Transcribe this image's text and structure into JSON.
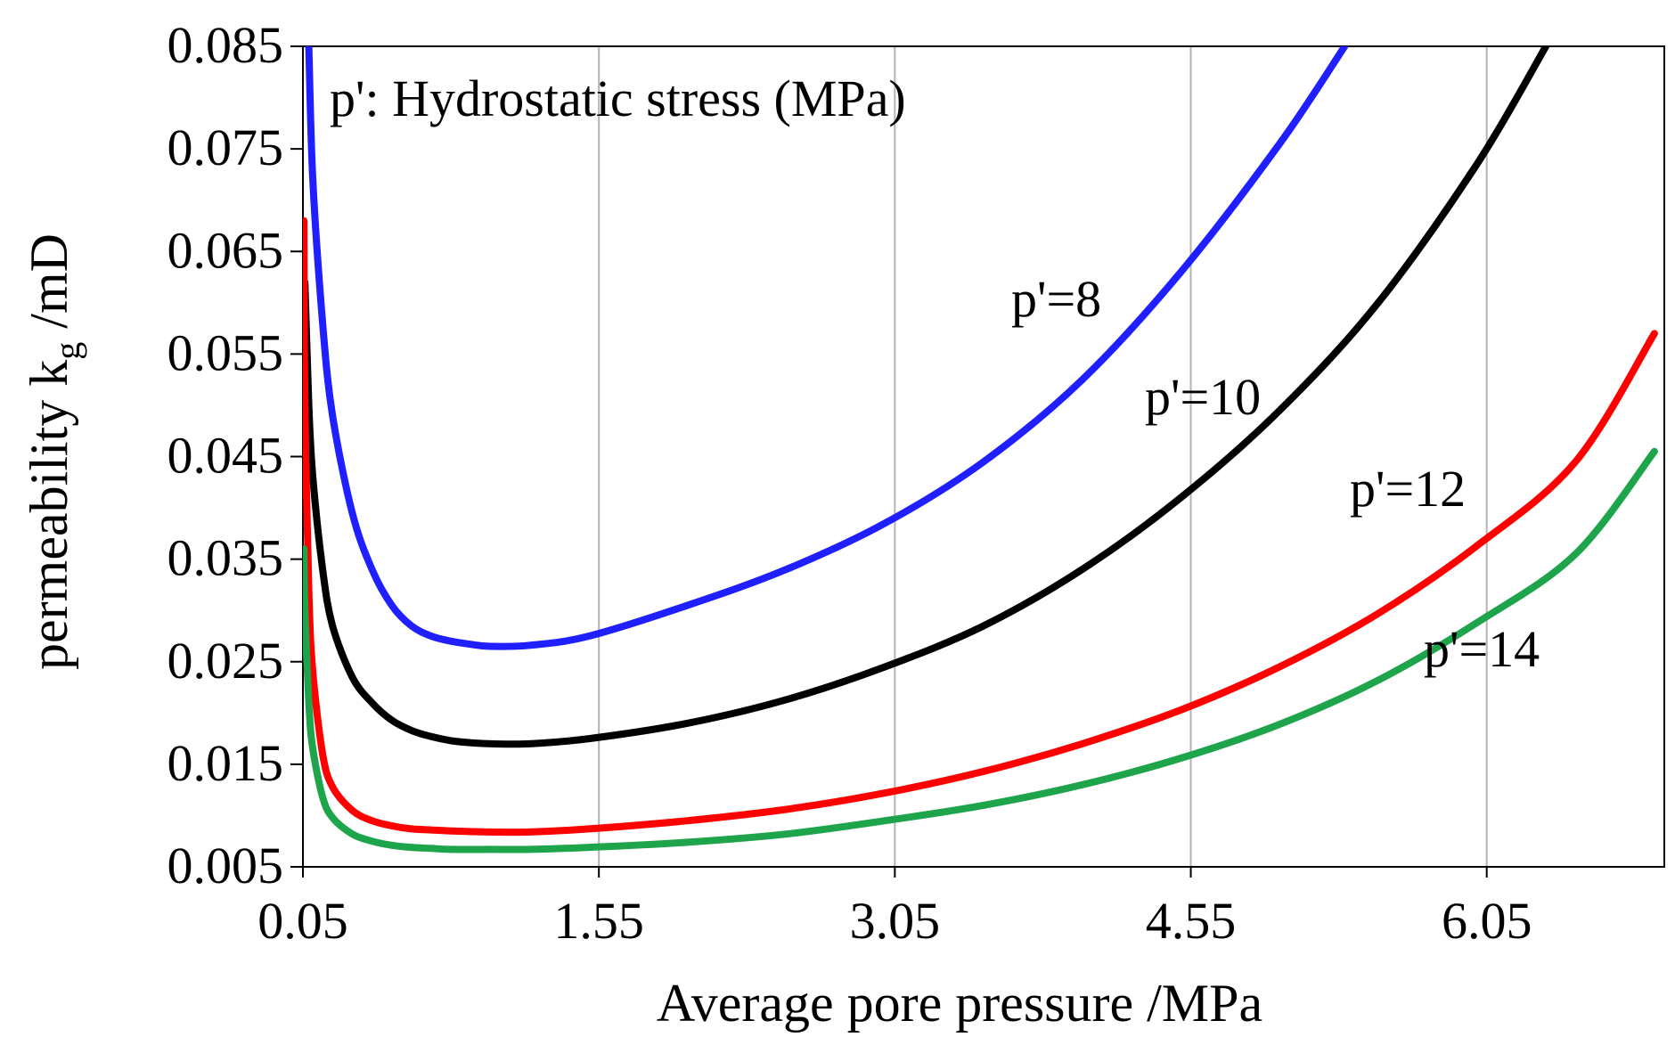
{
  "chart_data": {
    "type": "line",
    "title": "",
    "annotation": "p': Hydrostatic stress (MPa)",
    "xlabel": "Average pore pressure /MPa",
    "ylabel": {
      "main": "permeability k",
      "subscript": "g",
      "unit": " /mD"
    },
    "xlim": [
      0.05,
      6.95
    ],
    "ylim": [
      0.005,
      0.085
    ],
    "xticks": [
      0.05,
      1.55,
      3.05,
      4.55,
      6.05
    ],
    "xtick_labels": [
      "0.05",
      "1.55",
      "3.05",
      "4.55",
      "6.05"
    ],
    "yticks": [
      0.005,
      0.015,
      0.025,
      0.035,
      0.045,
      0.055,
      0.065,
      0.075,
      0.085
    ],
    "ytick_labels": [
      "0.005",
      "0.015",
      "0.025",
      "0.035",
      "0.045",
      "0.055",
      "0.065",
      "0.075",
      "0.085"
    ],
    "grid": "vertical",
    "series": [
      {
        "name": "p'=8",
        "label": "p'=8",
        "color": "#1f1fff",
        "x": [
          0.08,
          0.1,
          0.15,
          0.2,
          0.3,
          0.4,
          0.5,
          0.6,
          0.7,
          0.8,
          0.9,
          1.0,
          1.2,
          1.5,
          2.0,
          2.5,
          3.0,
          3.5,
          4.0,
          4.5,
          5.0,
          5.33
        ],
        "y": [
          0.085,
          0.072,
          0.058,
          0.049,
          0.0395,
          0.034,
          0.0305,
          0.0285,
          0.0275,
          0.027,
          0.0267,
          0.0265,
          0.0266,
          0.0275,
          0.0305,
          0.034,
          0.0385,
          0.0445,
          0.0525,
          0.063,
          0.0755,
          0.085
        ]
      },
      {
        "name": "p'=10",
        "label": "p'=10",
        "color": "#000000",
        "x": [
          0.06,
          0.08,
          0.1,
          0.15,
          0.2,
          0.3,
          0.4,
          0.5,
          0.6,
          0.7,
          0.8,
          0.9,
          1.0,
          1.2,
          1.5,
          2.0,
          2.5,
          3.0,
          3.5,
          4.0,
          4.5,
          5.0,
          5.5,
          6.0,
          6.35
        ],
        "y": [
          0.062,
          0.05,
          0.043,
          0.034,
          0.0285,
          0.0235,
          0.021,
          0.0193,
          0.0183,
          0.0177,
          0.0173,
          0.0171,
          0.017,
          0.017,
          0.0175,
          0.019,
          0.0213,
          0.0245,
          0.0285,
          0.034,
          0.041,
          0.0495,
          0.06,
          0.0735,
          0.085
        ]
      },
      {
        "name": "p'=12",
        "label": "p'=12",
        "color": "#ff0000",
        "x": [
          0.055,
          0.06,
          0.08,
          0.1,
          0.15,
          0.2,
          0.3,
          0.4,
          0.5,
          0.6,
          0.7,
          0.8,
          1.0,
          1.2,
          1.5,
          2.0,
          2.5,
          3.0,
          3.5,
          4.0,
          4.5,
          5.0,
          5.5,
          6.0,
          6.5,
          6.9
        ],
        "y": [
          0.068,
          0.05,
          0.032,
          0.024,
          0.016,
          0.0128,
          0.0105,
          0.0095,
          0.009,
          0.0087,
          0.0086,
          0.0085,
          0.0084,
          0.0084,
          0.0087,
          0.0095,
          0.0106,
          0.0122,
          0.0143,
          0.017,
          0.0203,
          0.0245,
          0.0297,
          0.0363,
          0.0445,
          0.057
        ]
      },
      {
        "name": "p'=14",
        "label": "p'=14",
        "color": "#1ea54b",
        "x": [
          0.055,
          0.06,
          0.08,
          0.1,
          0.15,
          0.2,
          0.3,
          0.4,
          0.5,
          0.6,
          0.7,
          0.8,
          1.0,
          1.2,
          1.5,
          2.0,
          2.5,
          3.0,
          3.5,
          4.0,
          4.5,
          5.0,
          5.5,
          6.0,
          6.5,
          6.9
        ],
        "y": [
          0.036,
          0.03,
          0.021,
          0.0165,
          0.0118,
          0.0098,
          0.0082,
          0.0075,
          0.0071,
          0.0069,
          0.0068,
          0.0067,
          0.0067,
          0.0067,
          0.0069,
          0.0074,
          0.0082,
          0.0095,
          0.011,
          0.013,
          0.0156,
          0.0189,
          0.0232,
          0.0288,
          0.0355,
          0.0455
        ]
      }
    ]
  }
}
